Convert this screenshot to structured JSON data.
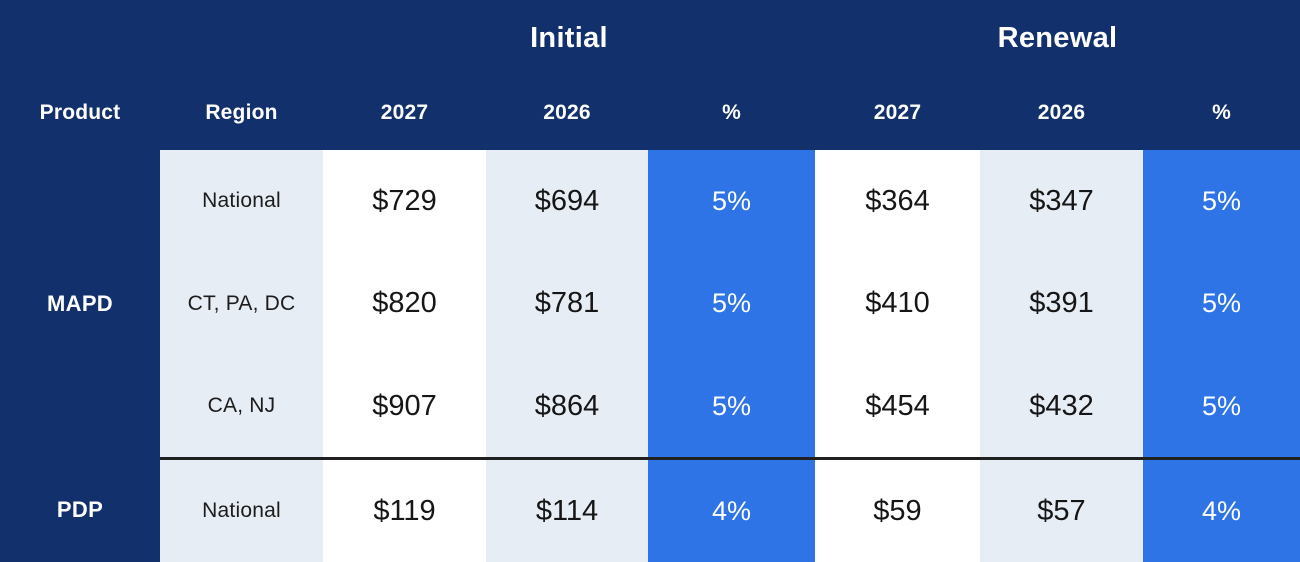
{
  "table": {
    "group_headers": {
      "initial": "Initial",
      "renewal": "Renewal"
    },
    "column_headers": {
      "product": "Product",
      "region": "Region",
      "initial_2027": "2027",
      "initial_2026": "2026",
      "initial_pct": "%",
      "renewal_2027": "2027",
      "renewal_2026": "2026",
      "renewal_pct": "%"
    },
    "groups": [
      {
        "product": "MAPD",
        "rows": [
          {
            "region": "National",
            "initial_2027": "$729",
            "initial_2026": "$694",
            "initial_pct": "5%",
            "renewal_2027": "$364",
            "renewal_2026": "$347",
            "renewal_pct": "5%"
          },
          {
            "region": "CT, PA, DC",
            "initial_2027": "$820",
            "initial_2026": "$781",
            "initial_pct": "5%",
            "renewal_2027": "$410",
            "renewal_2026": "$391",
            "renewal_pct": "5%"
          },
          {
            "region": "CA, NJ",
            "initial_2027": "$907",
            "initial_2026": "$864",
            "initial_pct": "5%",
            "renewal_2027": "$454",
            "renewal_2026": "$432",
            "renewal_pct": "5%"
          }
        ]
      },
      {
        "product": "PDP",
        "rows": [
          {
            "region": "National",
            "initial_2027": "$119",
            "initial_2026": "$114",
            "initial_pct": "4%",
            "renewal_2027": "$59",
            "renewal_2026": "$57",
            "renewal_pct": "4%"
          }
        ]
      }
    ],
    "colors": {
      "background_navy": "#12306B",
      "accent_blue": "#2E74E6",
      "light_cell": "#E7EDF5",
      "white_cell": "#FFFFFF",
      "separator": "#202020",
      "header_text": "#FFFFFF",
      "value_text": "#161616"
    }
  }
}
